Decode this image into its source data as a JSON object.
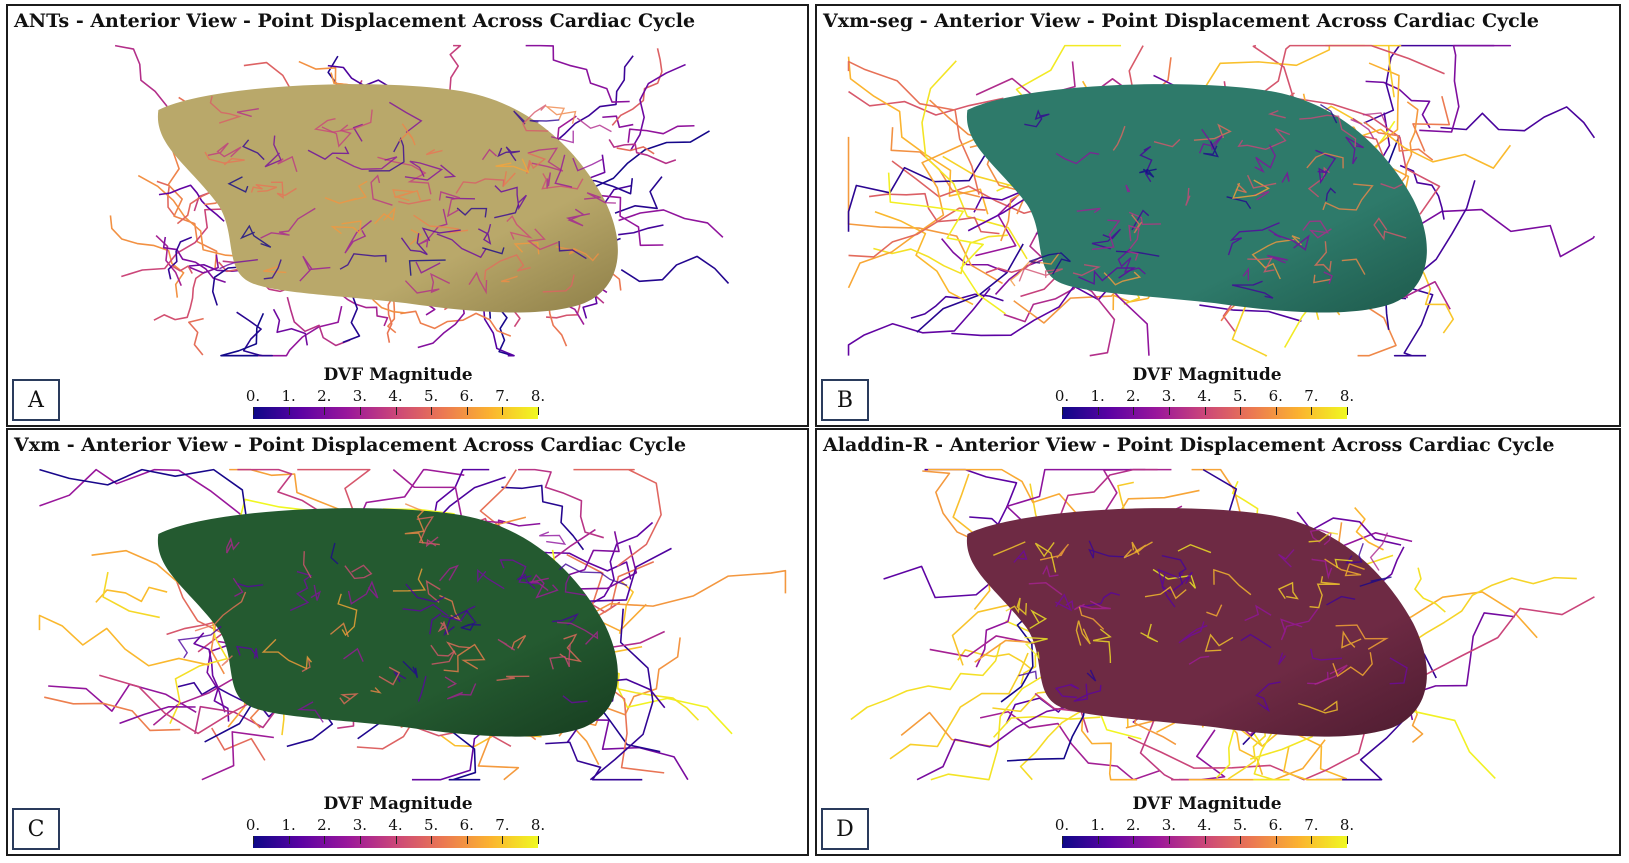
{
  "panels": [
    {
      "id": "A",
      "title": "ANTs - Anterior View - Point Displacement Across Cardiac Cycle",
      "label": "A",
      "surface_color": "#b9a86a",
      "surface_shadow": "#8e7f48"
    },
    {
      "id": "B",
      "title": "Vxm-seg - Anterior View - Point Displacement Across Cardiac Cycle",
      "label": "B",
      "surface_color": "#2e7a6a",
      "surface_shadow": "#1e5a4c"
    },
    {
      "id": "C",
      "title": "Vxm - Anterior View - Point Displacement Across Cardiac Cycle",
      "label": "C",
      "surface_color": "#245a30",
      "surface_shadow": "#173d20"
    },
    {
      "id": "D",
      "title": "Aladdin-R - Anterior View - Point Displacement Across Cardiac Cycle",
      "label": "D",
      "surface_color": "#6e2a44",
      "surface_shadow": "#4e1c30"
    }
  ],
  "colorbar": {
    "title": "DVF Magnitude",
    "ticks": [
      "0.",
      "1.",
      "2.",
      "3.",
      "4.",
      "5.",
      "6.",
      "7.",
      "8."
    ],
    "colormap": [
      "#0d0887",
      "#5b02a3",
      "#9a179b",
      "#cb4679",
      "#eb7852",
      "#fbb32f",
      "#f0f921"
    ]
  }
}
